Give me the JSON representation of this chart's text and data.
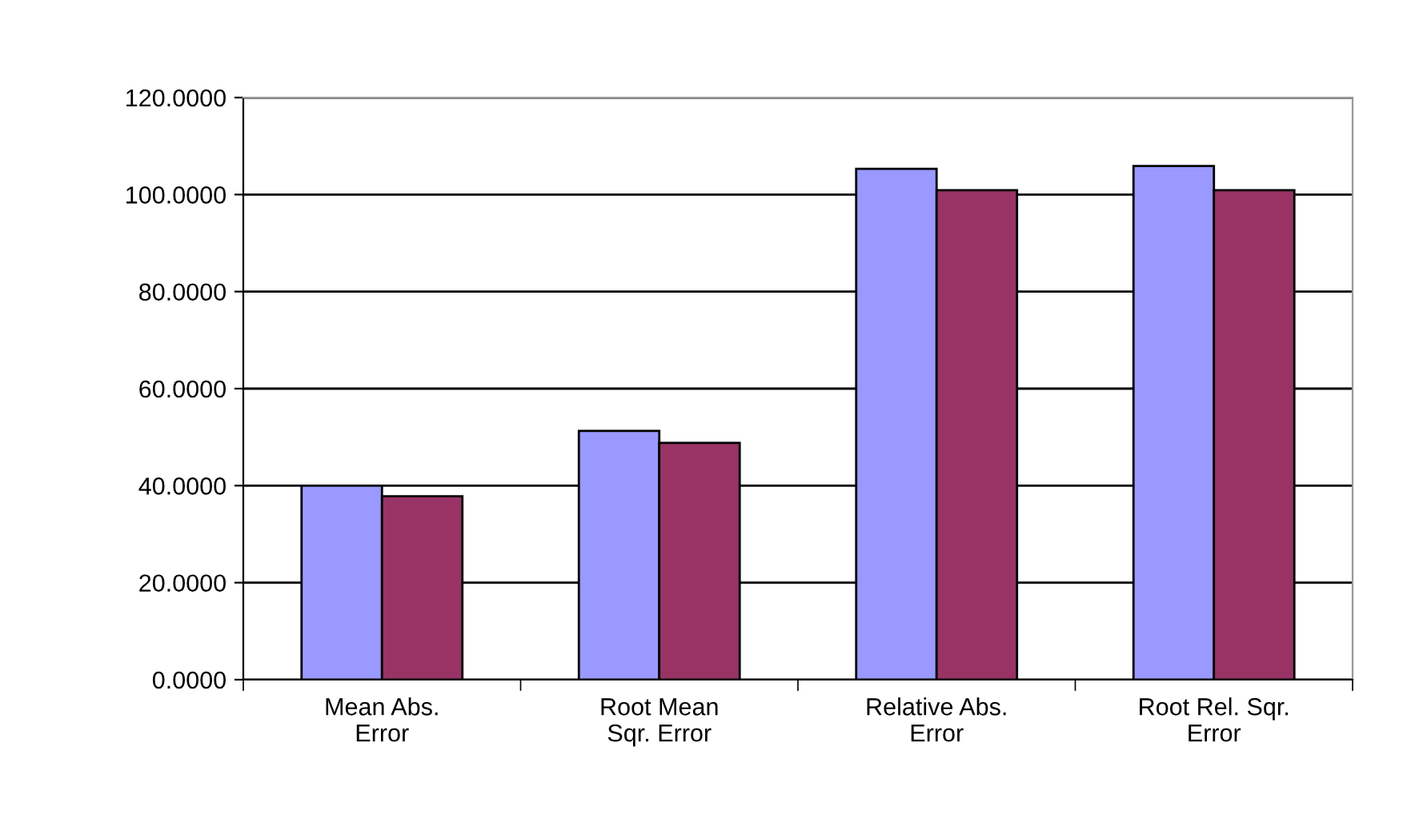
{
  "chart_data": {
    "type": "bar",
    "categories": [
      "Mean Abs.\nError",
      "Root Mean\nSqr. Error",
      "Relative Abs.\nError",
      "Root Rel. Sqr.\nError"
    ],
    "series": [
      {
        "color": "#9999ff",
        "values": [
          40.0,
          51.3,
          105.3,
          105.9
        ]
      },
      {
        "color": "#993366",
        "values": [
          37.8,
          48.8,
          100.9,
          100.9
        ]
      }
    ],
    "ylim": [
      0,
      120
    ],
    "yticks": [
      {
        "value": 0,
        "label": "0.0000"
      },
      {
        "value": 20,
        "label": "20.0000"
      },
      {
        "value": 40,
        "label": "40.0000"
      },
      {
        "value": 60,
        "label": "60.0000"
      },
      {
        "value": 80,
        "label": "80.0000"
      },
      {
        "value": 100,
        "label": "100.0000"
      },
      {
        "value": 120,
        "label": "120.0000"
      }
    ],
    "grid": "y",
    "legend": false
  }
}
